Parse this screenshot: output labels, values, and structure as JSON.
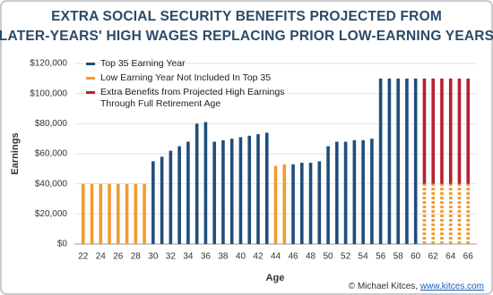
{
  "chart_data": {
    "type": "bar",
    "title": [
      "EXTRA SOCIAL SECURITY BENEFITS PROJECTED FROM",
      "LATER-YEARS' HIGH WAGES REPLACING PRIOR LOW-EARNING YEARS"
    ],
    "x_label": "Age",
    "y_label": "Earnings",
    "credit": "© Michael Kitces,",
    "credit_link": "www.kitces.com",
    "x": [
      22,
      23,
      24,
      25,
      26,
      27,
      28,
      29,
      30,
      31,
      32,
      33,
      34,
      35,
      36,
      37,
      38,
      39,
      40,
      41,
      42,
      43,
      44,
      45,
      46,
      47,
      48,
      49,
      50,
      51,
      52,
      53,
      54,
      55,
      56,
      57,
      58,
      59,
      60,
      61,
      62,
      63,
      64,
      65,
      66
    ],
    "series": [
      {
        "name": "Top 35 Earning Year",
        "color": "#1f4e79",
        "values": [
          null,
          null,
          null,
          null,
          null,
          null,
          null,
          null,
          55000,
          58000,
          62000,
          65000,
          68000,
          80000,
          81000,
          68000,
          69000,
          70000,
          71000,
          72000,
          73000,
          74000,
          null,
          null,
          53000,
          54000,
          54000,
          55000,
          65000,
          68000,
          68000,
          69000,
          69000,
          70000,
          110000,
          110000,
          110000,
          110000,
          110000,
          null,
          null,
          null,
          null,
          null,
          null
        ]
      },
      {
        "name": "Low Earning Year Not Included In Top 35",
        "color": "#f29b2e",
        "values": [
          40000,
          40000,
          40000,
          40000,
          40000,
          40000,
          40000,
          40000,
          null,
          null,
          null,
          null,
          null,
          null,
          null,
          null,
          null,
          null,
          null,
          null,
          null,
          null,
          52000,
          53000,
          null,
          null,
          null,
          null,
          null,
          null,
          null,
          null,
          null,
          null,
          null,
          null,
          null,
          null,
          null,
          40000,
          40000,
          40000,
          40000,
          40000,
          40000
        ]
      },
      {
        "name": "Extra Benefits from Projected High Earnings Through Full Retirement Age",
        "color": "#b8202f",
        "values": [
          null,
          null,
          null,
          null,
          null,
          null,
          null,
          null,
          null,
          null,
          null,
          null,
          null,
          null,
          null,
          null,
          null,
          null,
          null,
          null,
          null,
          null,
          null,
          null,
          null,
          null,
          null,
          null,
          null,
          null,
          null,
          null,
          null,
          null,
          null,
          null,
          null,
          null,
          null,
          70000,
          70000,
          70000,
          70000,
          70000,
          70000
        ]
      }
    ],
    "stacked": true,
    "xlim": [
      21,
      67
    ],
    "xticks": [
      22,
      24,
      26,
      28,
      30,
      32,
      34,
      36,
      38,
      40,
      42,
      44,
      46,
      48,
      50,
      52,
      54,
      56,
      58,
      60,
      62,
      64,
      66
    ],
    "ylim": [
      0,
      120000
    ],
    "yticks": [
      {
        "value": 0,
        "label": "$0"
      },
      {
        "value": 20000,
        "label": "$20,000"
      },
      {
        "value": 40000,
        "label": "$40,000"
      },
      {
        "value": 60000,
        "label": "$60,000"
      },
      {
        "value": 80000,
        "label": "$80,000"
      },
      {
        "value": 100000,
        "label": "$100,000"
      },
      {
        "value": 120000,
        "label": "$120,000"
      }
    ],
    "grid": true
  }
}
